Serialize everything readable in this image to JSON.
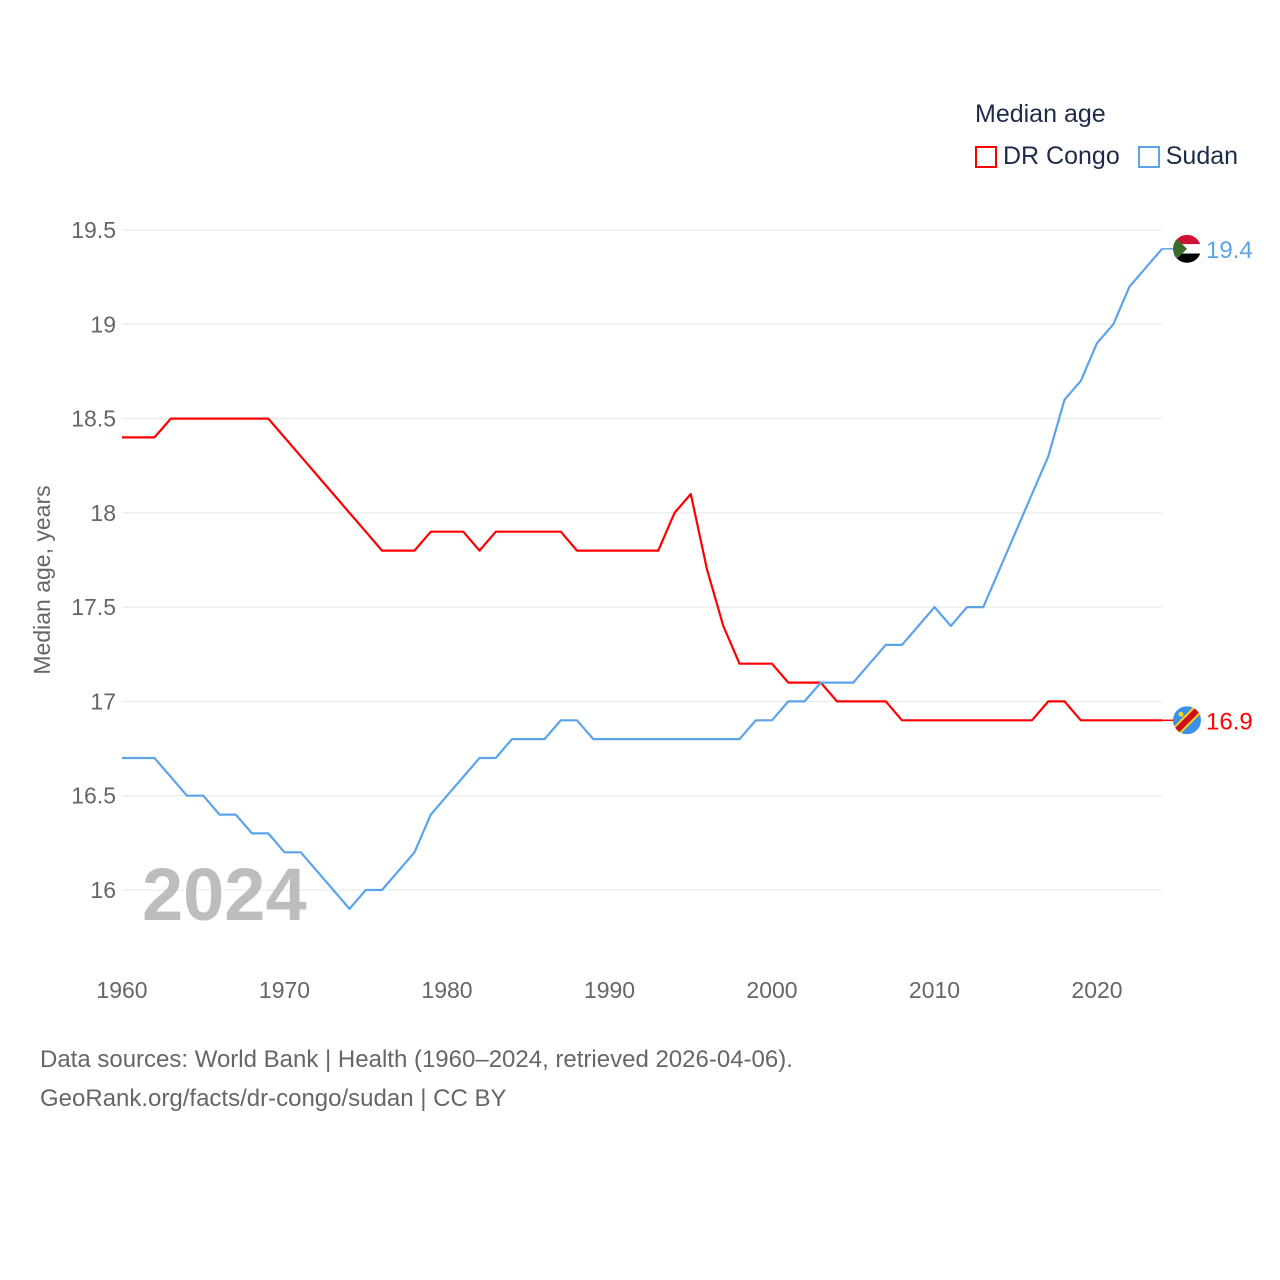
{
  "chart_data": {
    "type": "line",
    "title": "Median age",
    "ylabel": "Median age, years",
    "xlabel": "",
    "xlim": [
      1960,
      2024
    ],
    "ylim": [
      15.75,
      19.6
    ],
    "x_ticks": [
      1960,
      1970,
      1980,
      1990,
      2000,
      2010,
      2020
    ],
    "y_ticks": [
      16,
      16.5,
      17,
      17.5,
      18,
      18.5,
      19,
      19.5
    ],
    "y_tick_labels": [
      "16",
      "16.5",
      "17",
      "17.5",
      "18",
      "18.5",
      "19",
      "19.5"
    ],
    "grid": true,
    "legend_position": "top-right",
    "year_label": "2024",
    "x": [
      1960,
      1961,
      1962,
      1963,
      1964,
      1965,
      1966,
      1967,
      1968,
      1969,
      1970,
      1971,
      1972,
      1973,
      1974,
      1975,
      1976,
      1977,
      1978,
      1979,
      1980,
      1981,
      1982,
      1983,
      1984,
      1985,
      1986,
      1987,
      1988,
      1989,
      1990,
      1991,
      1992,
      1993,
      1994,
      1995,
      1996,
      1997,
      1998,
      1999,
      2000,
      2001,
      2002,
      2003,
      2004,
      2005,
      2006,
      2007,
      2008,
      2009,
      2010,
      2011,
      2012,
      2013,
      2014,
      2015,
      2016,
      2017,
      2018,
      2019,
      2020,
      2021,
      2022,
      2023,
      2024
    ],
    "series": [
      {
        "name": "DR Congo",
        "color": "#ff0000",
        "end_label": "16.9",
        "values": [
          18.4,
          18.4,
          18.4,
          18.5,
          18.5,
          18.5,
          18.5,
          18.5,
          18.5,
          18.5,
          18.4,
          18.3,
          18.2,
          18.1,
          18.0,
          17.9,
          17.8,
          17.8,
          17.8,
          17.9,
          17.9,
          17.9,
          17.8,
          17.9,
          17.9,
          17.9,
          17.9,
          17.9,
          17.8,
          17.8,
          17.8,
          17.8,
          17.8,
          17.8,
          18.0,
          18.1,
          17.7,
          17.4,
          17.2,
          17.2,
          17.2,
          17.1,
          17.1,
          17.1,
          17.0,
          17.0,
          17.0,
          17.0,
          16.9,
          16.9,
          16.9,
          16.9,
          16.9,
          16.9,
          16.9,
          16.9,
          16.9,
          17.0,
          17.0,
          16.9,
          16.9,
          16.9,
          16.9,
          16.9,
          16.9
        ]
      },
      {
        "name": "Sudan",
        "color": "#5ba4ea",
        "end_label": "19.4",
        "values": [
          16.7,
          16.7,
          16.7,
          16.6,
          16.5,
          16.5,
          16.4,
          16.4,
          16.3,
          16.3,
          16.2,
          16.2,
          16.1,
          16.0,
          15.9,
          16.0,
          16.0,
          16.1,
          16.2,
          16.4,
          16.5,
          16.6,
          16.7,
          16.7,
          16.8,
          16.8,
          16.8,
          16.9,
          16.9,
          16.8,
          16.8,
          16.8,
          16.8,
          16.8,
          16.8,
          16.8,
          16.8,
          16.8,
          16.8,
          16.9,
          16.9,
          17.0,
          17.0,
          17.1,
          17.1,
          17.1,
          17.2,
          17.3,
          17.3,
          17.4,
          17.5,
          17.4,
          17.5,
          17.5,
          17.7,
          17.9,
          18.1,
          18.3,
          18.6,
          18.7,
          18.9,
          19.0,
          19.2,
          19.3,
          19.4
        ]
      }
    ]
  },
  "source": {
    "line1": "Data sources: World Bank | Health (1960–2024, retrieved 2026-04-06).",
    "line2": "GeoRank.org/facts/dr-congo/sudan | CC BY"
  }
}
